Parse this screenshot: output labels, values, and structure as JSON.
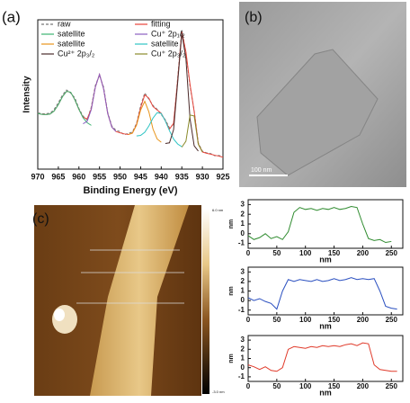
{
  "panels": {
    "a": "(a)",
    "b": "(b)",
    "c": "(c)"
  },
  "tem": {
    "scale_bar": "100 nm"
  },
  "afm": {
    "colorbar_top": "6.0 nm",
    "colorbar_bottom": "-3.0 nm"
  },
  "chart_data": [
    {
      "type": "line",
      "xlabel": "Binding Energy (eV)",
      "ylabel": "Intensity",
      "xlim": [
        970,
        925
      ],
      "xticks": [
        970,
        965,
        960,
        955,
        950,
        945,
        940,
        935,
        930,
        925
      ],
      "ylim": [
        0,
        100
      ],
      "x": [
        970,
        969,
        968,
        967,
        966,
        965,
        964,
        963,
        962,
        961,
        960,
        959,
        958,
        957,
        956,
        955,
        954,
        953,
        952,
        951,
        950,
        949,
        948,
        947,
        946,
        945,
        944,
        943,
        942,
        941,
        940,
        939,
        938,
        937,
        936,
        935,
        934,
        933,
        932,
        931,
        930,
        929,
        928,
        927,
        926,
        925
      ],
      "series": [
        {
          "name": "raw",
          "color": "#777777",
          "dashed": true,
          "values": [
            37.8,
            37.0,
            37.2,
            37.4,
            40.1,
            44.5,
            49.6,
            53.0,
            50.9,
            47.8,
            40.6,
            35.5,
            33.0,
            41.5,
            56.2,
            62.8,
            54.9,
            37.9,
            28.8,
            26.0,
            25.1,
            23.0,
            24.0,
            24.8,
            30.6,
            42.5,
            51.0,
            46.8,
            42.6,
            40.1,
            36.5,
            33.0,
            27.6,
            30.0,
            61.2,
            93.5,
            77.5,
            55.4,
            39.2,
            17.5,
            12.0,
            10.9,
            10.4,
            9.0,
            9.1,
            8.3
          ]
        },
        {
          "name": "fitting",
          "color": "#e8443a",
          "values": [
            37.3,
            36.7,
            36.5,
            36.9,
            39.0,
            43.2,
            48.5,
            52.1,
            51.5,
            46.5,
            40.0,
            34.7,
            33.6,
            40.3,
            55.0,
            63.5,
            53.7,
            37.2,
            28.1,
            25.2,
            24.3,
            23.6,
            23.2,
            24.1,
            29.9,
            41.2,
            49.7,
            47.5,
            41.9,
            39.6,
            37.4,
            32.3,
            26.8,
            30.7,
            59.8,
            91.9,
            78.6,
            56.6,
            38.6,
            16.9,
            11.5,
            10.6,
            10.0,
            9.3,
            8.7,
            8.0
          ]
        },
        {
          "name": "satellite",
          "color": "#3cb371",
          "values": [
            37.3,
            36.7,
            36.5,
            36.9,
            39.0,
            43.2,
            48.5,
            52.1,
            51.5,
            46.5,
            40.0,
            34.4,
            31.1,
            29.3,
            null,
            null,
            null,
            null,
            null,
            null,
            null,
            null,
            null,
            null,
            null,
            null,
            null,
            null,
            null,
            null,
            null,
            null,
            null,
            null,
            null,
            null,
            null,
            null,
            null,
            null,
            null,
            null,
            null,
            null,
            null,
            null
          ]
        },
        {
          "name": "Cu⁺ 2p₁/₂",
          "color": "#8a5fc2",
          "values": [
            null,
            null,
            null,
            null,
            null,
            null,
            null,
            null,
            null,
            null,
            null,
            30.4,
            32.0,
            39.8,
            55.0,
            63.5,
            53.7,
            37.2,
            28.1,
            25.2,
            null,
            null,
            null,
            null,
            null,
            null,
            null,
            null,
            null,
            null,
            null,
            null,
            null,
            null,
            null,
            null,
            null,
            null,
            null,
            null,
            null,
            null,
            null,
            null,
            null,
            null
          ]
        },
        {
          "name": "satellite",
          "color": "#e8941a",
          "values": [
            null,
            null,
            null,
            null,
            null,
            null,
            null,
            null,
            null,
            null,
            null,
            null,
            null,
            null,
            null,
            null,
            null,
            null,
            null,
            null,
            null,
            null,
            23.2,
            24.1,
            29.4,
            39.6,
            45.4,
            38.3,
            26.8,
            20.2,
            18.0,
            null,
            null,
            null,
            null,
            null,
            null,
            null,
            null,
            null,
            null,
            null,
            null,
            null,
            null,
            null
          ]
        },
        {
          "name": "satellite",
          "color": "#2ec4c4",
          "values": [
            null,
            null,
            null,
            null,
            null,
            null,
            null,
            null,
            null,
            null,
            null,
            null,
            null,
            null,
            null,
            null,
            null,
            null,
            null,
            null,
            null,
            null,
            null,
            null,
            22.2,
            22.6,
            24.7,
            28.9,
            34.2,
            37.8,
            37.2,
            32.2,
            25.7,
            20.1,
            16.8,
            15.0,
            null,
            null,
            null,
            null,
            null,
            null,
            null,
            null,
            null,
            null
          ]
        },
        {
          "name": "Cu²⁺ 2p₃/₂",
          "color": "#4a2a2a",
          "values": [
            null,
            null,
            null,
            null,
            null,
            null,
            null,
            null,
            null,
            null,
            null,
            null,
            null,
            null,
            null,
            null,
            null,
            null,
            null,
            null,
            null,
            null,
            null,
            null,
            null,
            null,
            null,
            null,
            null,
            null,
            null,
            17.2,
            17.6,
            26.4,
            58.2,
            91.2,
            73.8,
            33.6,
            15.6,
            12.1,
            null,
            null,
            null,
            null,
            null,
            null
          ]
        },
        {
          "name": "Cu⁺ 2p₃/₂",
          "color": "#8a8a2a",
          "values": [
            null,
            null,
            null,
            null,
            null,
            null,
            null,
            null,
            null,
            null,
            null,
            null,
            null,
            null,
            null,
            null,
            null,
            null,
            null,
            null,
            null,
            null,
            null,
            null,
            null,
            null,
            null,
            null,
            null,
            null,
            null,
            null,
            null,
            null,
            null,
            14.7,
            18.7,
            36.2,
            35.6,
            16.7,
            11.5,
            null,
            null,
            null,
            null,
            null
          ]
        }
      ]
    },
    {
      "type": "line",
      "xlabel": "nm",
      "ylabel": "nm",
      "xlim": [
        0,
        270
      ],
      "xticks": [
        0,
        50,
        100,
        150,
        200,
        250
      ],
      "ylim": [
        -1.5,
        3.5
      ],
      "yticks": [
        -1,
        0,
        1,
        2,
        3
      ],
      "x": [
        0,
        10,
        20,
        30,
        40,
        50,
        60,
        70,
        80,
        90,
        100,
        110,
        120,
        130,
        140,
        150,
        160,
        170,
        180,
        190,
        200,
        210,
        220,
        230,
        240,
        250
      ],
      "series": [
        {
          "color": "#2e8b2e",
          "values": [
            -0.2,
            -0.6,
            -0.4,
            0.0,
            -0.5,
            -0.3,
            -0.6,
            0.2,
            2.2,
            2.7,
            2.5,
            2.6,
            2.4,
            2.6,
            2.5,
            2.7,
            2.5,
            2.6,
            2.8,
            2.7,
            1.0,
            -0.5,
            -0.7,
            -0.6,
            -0.9,
            -0.8
          ]
        }
      ]
    },
    {
      "type": "line",
      "xlabel": "nm",
      "ylabel": "nm",
      "xlim": [
        0,
        270
      ],
      "xticks": [
        0,
        50,
        100,
        150,
        200,
        250
      ],
      "ylim": [
        -1.5,
        3.5
      ],
      "yticks": [
        -1,
        0,
        1,
        2,
        3
      ],
      "x": [
        0,
        10,
        20,
        30,
        40,
        50,
        60,
        70,
        80,
        90,
        100,
        110,
        120,
        130,
        140,
        150,
        160,
        170,
        180,
        190,
        200,
        210,
        220,
        230,
        240,
        250,
        260
      ],
      "series": [
        {
          "color": "#2a4fc0",
          "values": [
            0.3,
            0.0,
            0.2,
            -0.1,
            -0.3,
            -0.9,
            1.0,
            2.2,
            2.0,
            2.2,
            2.1,
            2.0,
            2.2,
            2.0,
            2.1,
            2.3,
            2.1,
            2.2,
            2.4,
            2.2,
            2.3,
            2.2,
            2.3,
            1.0,
            -0.6,
            -0.8,
            -0.9
          ]
        }
      ]
    },
    {
      "type": "line",
      "xlabel": "nm",
      "ylabel": "nm",
      "xlim": [
        0,
        270
      ],
      "xticks": [
        0,
        50,
        100,
        150,
        200,
        250
      ],
      "ylim": [
        -1.5,
        3.5
      ],
      "yticks": [
        -1,
        0,
        1,
        2,
        3
      ],
      "x": [
        0,
        10,
        20,
        30,
        40,
        50,
        60,
        70,
        80,
        90,
        100,
        110,
        120,
        130,
        140,
        150,
        160,
        170,
        180,
        190,
        200,
        210,
        220,
        230,
        240,
        250,
        260
      ],
      "series": [
        {
          "color": "#e03a2a",
          "values": [
            0.3,
            0.1,
            -0.2,
            0.1,
            -0.3,
            -0.4,
            0.0,
            2.0,
            2.3,
            2.2,
            2.1,
            2.3,
            2.2,
            2.4,
            2.3,
            2.4,
            2.3,
            2.5,
            2.6,
            2.4,
            2.7,
            2.6,
            0.3,
            -0.2,
            -0.3,
            -0.4,
            -0.4
          ]
        }
      ]
    }
  ]
}
